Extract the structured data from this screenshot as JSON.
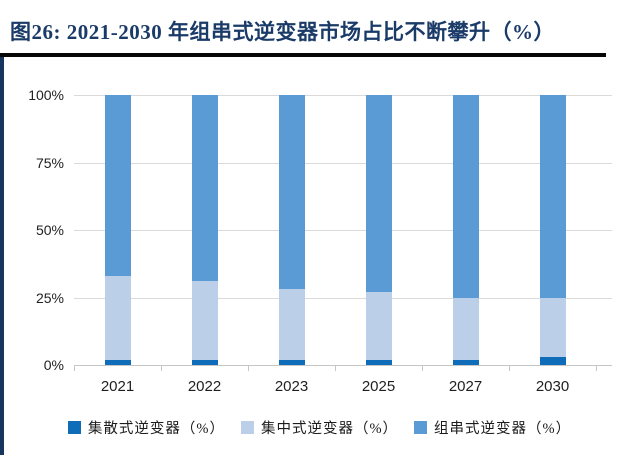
{
  "header": {
    "title": "图26:  2021-2030 年组串式逆变器市场占比不断攀升（%）"
  },
  "colors": {
    "title_text": "#1a3a68",
    "title_rule": "#060606",
    "left_accent": "#17355f",
    "gridline": "#dadada",
    "axis": "#c6c6c6",
    "tick_label": "#222222"
  },
  "chart_data": {
    "type": "bar",
    "stacked": true,
    "title": "2021-2030 年组串式逆变器市场占比不断攀升（%）",
    "categories": [
      "2021",
      "2022",
      "2023",
      "2025",
      "2027",
      "2030"
    ],
    "series": [
      {
        "name": "集散式逆变器（%）",
        "color": "#0f6cb8",
        "values": [
          2,
          2,
          2,
          2,
          2,
          3
        ]
      },
      {
        "name": "集中式逆变器（%）",
        "color": "#bccfe9",
        "values": [
          31,
          29,
          26,
          25,
          23,
          22
        ]
      },
      {
        "name": "组串式逆变器（%）",
        "color": "#5b9bd5",
        "values": [
          67,
          69,
          72,
          73,
          75,
          75
        ]
      }
    ],
    "xlabel": "",
    "ylabel": "",
    "ylim": [
      0,
      100
    ],
    "yticks": [
      0,
      25,
      50,
      75,
      100
    ],
    "ytick_labels": [
      "0%",
      "25%",
      "50%",
      "75%",
      "100%"
    ],
    "grid": true,
    "legend_position": "bottom"
  }
}
